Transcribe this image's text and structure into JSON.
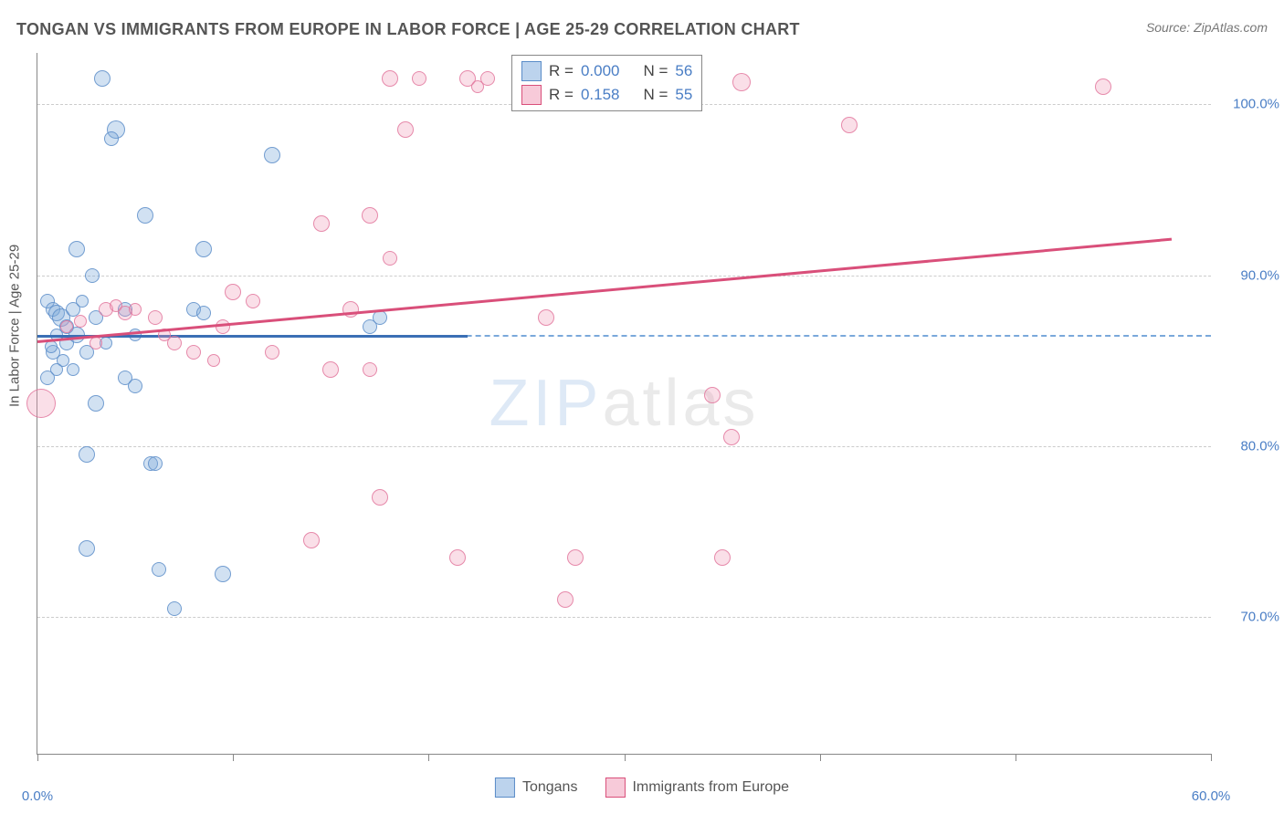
{
  "title": "TONGAN VS IMMIGRANTS FROM EUROPE IN LABOR FORCE | AGE 25-29 CORRELATION CHART",
  "source": "Source: ZipAtlas.com",
  "y_axis_label": "In Labor Force | Age 25-29",
  "watermark": {
    "zip": "ZIP",
    "atlas": "atlas"
  },
  "chart": {
    "type": "scatter",
    "xlim": [
      0,
      60
    ],
    "ylim": [
      62,
      103
    ],
    "x_ticks": [
      0,
      10,
      20,
      30,
      40,
      50,
      60
    ],
    "x_tick_labels": [
      "0.0%",
      "",
      "",
      "",
      "",
      "",
      "60.0%"
    ],
    "y_gridlines": [
      70,
      80,
      90,
      100
    ],
    "y_tick_labels": [
      "70.0%",
      "80.0%",
      "90.0%",
      "100.0%"
    ],
    "reference_line_y": 86.5,
    "grid_color": "#cccccc",
    "background_color": "#ffffff",
    "axis_color": "#888888",
    "tick_label_color": "#4a7ec5",
    "series": [
      {
        "name": "Tongans",
        "color_fill": "rgba(122,168,219,0.35)",
        "color_stroke": "rgba(90,140,200,0.8)",
        "marker": "circle",
        "trend": {
          "x1": 0,
          "y1": 86.5,
          "x2": 22,
          "y2": 86.5,
          "color": "#3b6fb5",
          "width": 2.5
        },
        "R": "0.000",
        "N": "56",
        "points": [
          {
            "x": 3.3,
            "y": 101.5,
            "r": 9
          },
          {
            "x": 4.0,
            "y": 98.5,
            "r": 10
          },
          {
            "x": 3.8,
            "y": 98.0,
            "r": 8
          },
          {
            "x": 12.0,
            "y": 97.0,
            "r": 9
          },
          {
            "x": 0.5,
            "y": 88.5,
            "r": 8
          },
          {
            "x": 0.8,
            "y": 88.0,
            "r": 8
          },
          {
            "x": 1.0,
            "y": 87.8,
            "r": 9
          },
          {
            "x": 1.2,
            "y": 87.5,
            "r": 10
          },
          {
            "x": 1.5,
            "y": 87.0,
            "r": 8
          },
          {
            "x": 1.0,
            "y": 86.5,
            "r": 7
          },
          {
            "x": 1.5,
            "y": 86.0,
            "r": 8
          },
          {
            "x": 2.0,
            "y": 86.5,
            "r": 9
          },
          {
            "x": 0.8,
            "y": 85.5,
            "r": 8
          },
          {
            "x": 1.3,
            "y": 85.0,
            "r": 7
          },
          {
            "x": 2.5,
            "y": 85.5,
            "r": 8
          },
          {
            "x": 0.7,
            "y": 85.8,
            "r": 7
          },
          {
            "x": 1.8,
            "y": 88.0,
            "r": 8
          },
          {
            "x": 2.3,
            "y": 88.5,
            "r": 7
          },
          {
            "x": 3.0,
            "y": 87.5,
            "r": 8
          },
          {
            "x": 3.5,
            "y": 86.0,
            "r": 7
          },
          {
            "x": 4.5,
            "y": 88.0,
            "r": 8
          },
          {
            "x": 5.0,
            "y": 86.5,
            "r": 7
          },
          {
            "x": 2.0,
            "y": 91.5,
            "r": 9
          },
          {
            "x": 2.8,
            "y": 90.0,
            "r": 8
          },
          {
            "x": 5.5,
            "y": 93.5,
            "r": 9
          },
          {
            "x": 8.5,
            "y": 91.5,
            "r": 9
          },
          {
            "x": 8.0,
            "y": 88.0,
            "r": 8
          },
          {
            "x": 8.5,
            "y": 87.8,
            "r": 8
          },
          {
            "x": 17.5,
            "y": 87.5,
            "r": 8
          },
          {
            "x": 17.0,
            "y": 87.0,
            "r": 8
          },
          {
            "x": 1.0,
            "y": 84.5,
            "r": 7
          },
          {
            "x": 0.5,
            "y": 84.0,
            "r": 8
          },
          {
            "x": 1.8,
            "y": 84.5,
            "r": 7
          },
          {
            "x": 4.5,
            "y": 84.0,
            "r": 8
          },
          {
            "x": 5.0,
            "y": 83.5,
            "r": 8
          },
          {
            "x": 3.0,
            "y": 82.5,
            "r": 9
          },
          {
            "x": 2.5,
            "y": 79.5,
            "r": 9
          },
          {
            "x": 5.8,
            "y": 79.0,
            "r": 8
          },
          {
            "x": 6.0,
            "y": 79.0,
            "r": 8
          },
          {
            "x": 2.5,
            "y": 74.0,
            "r": 9
          },
          {
            "x": 6.2,
            "y": 72.8,
            "r": 8
          },
          {
            "x": 9.5,
            "y": 72.5,
            "r": 9
          },
          {
            "x": 7.0,
            "y": 70.5,
            "r": 8
          }
        ]
      },
      {
        "name": "Immigrants from Europe",
        "color_fill": "rgba(240,150,180,0.3)",
        "color_stroke": "rgba(225,115,155,0.8)",
        "marker": "circle",
        "trend": {
          "x1": 0,
          "y1": 86.2,
          "x2": 58,
          "y2": 92.2,
          "color": "#d94f7a",
          "width": 2.5
        },
        "R": "0.158",
        "N": "55",
        "points": [
          {
            "x": 18.0,
            "y": 101.5,
            "r": 9
          },
          {
            "x": 19.5,
            "y": 101.5,
            "r": 8
          },
          {
            "x": 22.0,
            "y": 101.5,
            "r": 9
          },
          {
            "x": 22.5,
            "y": 101.0,
            "r": 7
          },
          {
            "x": 23.0,
            "y": 101.5,
            "r": 8
          },
          {
            "x": 36.0,
            "y": 101.3,
            "r": 10
          },
          {
            "x": 41.5,
            "y": 98.8,
            "r": 9
          },
          {
            "x": 54.5,
            "y": 101.0,
            "r": 9
          },
          {
            "x": 18.8,
            "y": 98.5,
            "r": 9
          },
          {
            "x": 14.5,
            "y": 93.0,
            "r": 9
          },
          {
            "x": 17.0,
            "y": 93.5,
            "r": 9
          },
          {
            "x": 18.0,
            "y": 91.0,
            "r": 8
          },
          {
            "x": 16.0,
            "y": 88.0,
            "r": 9
          },
          {
            "x": 10.0,
            "y": 89.0,
            "r": 9
          },
          {
            "x": 11.0,
            "y": 88.5,
            "r": 8
          },
          {
            "x": 8.0,
            "y": 85.5,
            "r": 8
          },
          {
            "x": 9.0,
            "y": 85.0,
            "r": 7
          },
          {
            "x": 9.5,
            "y": 87.0,
            "r": 8
          },
          {
            "x": 12.0,
            "y": 85.5,
            "r": 8
          },
          {
            "x": 15.0,
            "y": 84.5,
            "r": 9
          },
          {
            "x": 17.0,
            "y": 84.5,
            "r": 8
          },
          {
            "x": 1.5,
            "y": 87.0,
            "r": 7
          },
          {
            "x": 2.2,
            "y": 87.3,
            "r": 7
          },
          {
            "x": 3.5,
            "y": 88.0,
            "r": 8
          },
          {
            "x": 4.0,
            "y": 88.2,
            "r": 7
          },
          {
            "x": 4.5,
            "y": 87.8,
            "r": 8
          },
          {
            "x": 5.0,
            "y": 88.0,
            "r": 7
          },
          {
            "x": 6.0,
            "y": 87.5,
            "r": 8
          },
          {
            "x": 6.5,
            "y": 86.5,
            "r": 7
          },
          {
            "x": 7.0,
            "y": 86.0,
            "r": 8
          },
          {
            "x": 3.0,
            "y": 86.0,
            "r": 7
          },
          {
            "x": 0.2,
            "y": 82.5,
            "r": 16
          },
          {
            "x": 26.0,
            "y": 87.5,
            "r": 9
          },
          {
            "x": 34.5,
            "y": 83.0,
            "r": 9
          },
          {
            "x": 35.5,
            "y": 80.5,
            "r": 9
          },
          {
            "x": 17.5,
            "y": 77.0,
            "r": 9
          },
          {
            "x": 14.0,
            "y": 74.5,
            "r": 9
          },
          {
            "x": 21.5,
            "y": 73.5,
            "r": 9
          },
          {
            "x": 27.5,
            "y": 73.5,
            "r": 9
          },
          {
            "x": 35.0,
            "y": 73.5,
            "r": 9
          },
          {
            "x": 27.0,
            "y": 71.0,
            "r": 9
          }
        ]
      }
    ]
  },
  "legend_top": {
    "rows": [
      {
        "swatch": "blue",
        "r_label": "R =",
        "r_val": "0.000",
        "n_label": "N =",
        "n_val": "56"
      },
      {
        "swatch": "pink",
        "r_label": "R =",
        "r_val": " 0.158",
        "n_label": "N =",
        "n_val": "55"
      }
    ]
  },
  "legend_bottom": {
    "items": [
      {
        "swatch": "blue",
        "label": "Tongans"
      },
      {
        "swatch": "pink",
        "label": "Immigrants from Europe"
      }
    ]
  }
}
